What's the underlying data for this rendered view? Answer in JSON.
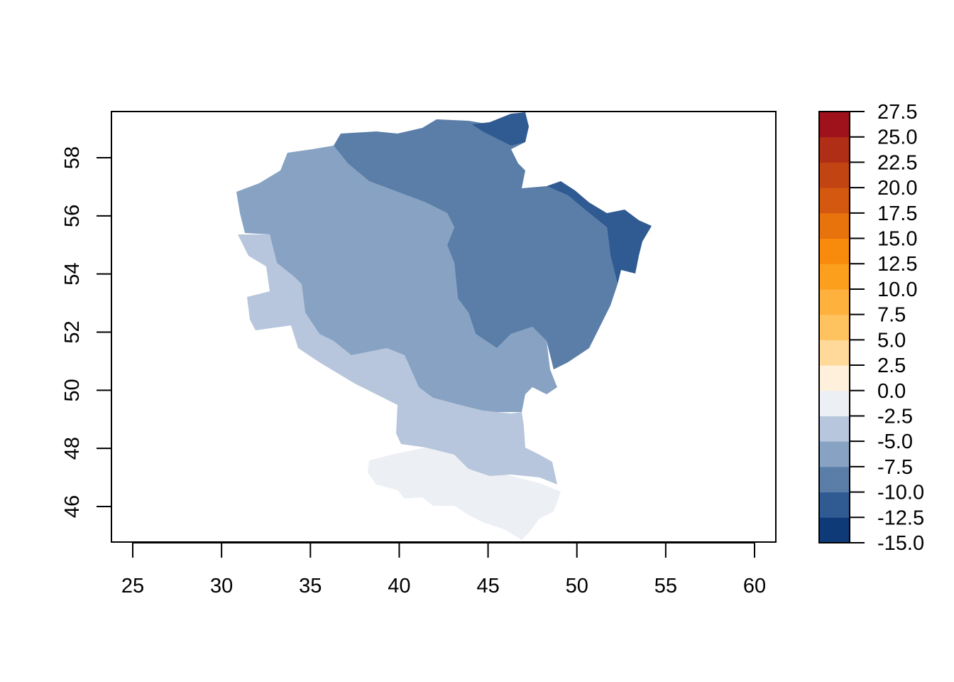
{
  "map": {
    "type": "raster-map",
    "x_axis": {
      "ticks": [
        "25",
        "30",
        "35",
        "40",
        "45",
        "50",
        "55",
        "60"
      ],
      "range": [
        24,
        61.2
      ]
    },
    "y_axis": {
      "ticks": [
        "46",
        "48",
        "50",
        "52",
        "54",
        "56",
        "58"
      ],
      "range": [
        44.8,
        59.6
      ]
    },
    "legend": {
      "placement": "right",
      "breaks": [
        "-15.0",
        "-12.5",
        "-10.0",
        "-7.5",
        "-5.0",
        "-2.5",
        "0.0",
        "2.5",
        "5.0",
        "7.5",
        "10.0",
        "12.5",
        "15.0",
        "17.5",
        "20.0",
        "22.5",
        "25.0",
        "27.5"
      ],
      "colors": [
        "#0f3a78",
        "#2f5b92",
        "#5a7ea8",
        "#87a2c2",
        "#b7c6dc",
        "#eceff4",
        "#fff0dc",
        "#ffd999",
        "#fec25f",
        "#feb13c",
        "#fc9f1c",
        "#f88a0c",
        "#e8720c",
        "#d4580f",
        "#c24412",
        "#b12e16",
        "#9f121b"
      ]
    },
    "regions": [
      {
        "class": "-12.5 to -10.0",
        "color": "#2f5b92"
      },
      {
        "class": "-10.0 to -7.5",
        "color": "#5a7ea8"
      },
      {
        "class": "-7.5 to -5.0",
        "color": "#87a2c2"
      },
      {
        "class": "-5.0 to -2.5",
        "color": "#b7c6dc"
      },
      {
        "class": "-2.5 to 0.0",
        "color": "#eceff4"
      }
    ]
  }
}
